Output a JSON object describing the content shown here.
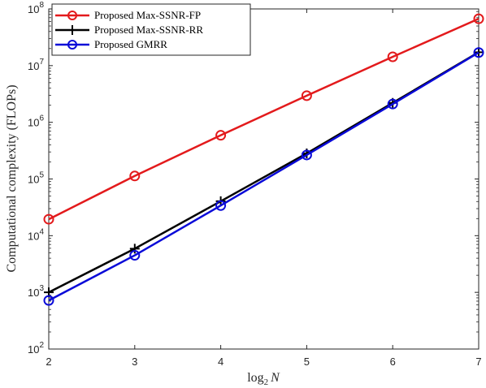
{
  "chart_data": {
    "type": "line",
    "xlabel": "log",
    "xlabel_sub": "2",
    "xlabel_var": "N",
    "ylabel": "Computational complexity (FLOPs)",
    "x": [
      2,
      3,
      4,
      5,
      6,
      7
    ],
    "xlim": [
      2,
      7
    ],
    "ylim": [
      100,
      100000000
    ],
    "yscale": "log",
    "x_ticks": [
      "2",
      "3",
      "4",
      "5",
      "6",
      "7"
    ],
    "y_ticks": [
      {
        "base": "10",
        "exp": "2"
      },
      {
        "base": "10",
        "exp": "3"
      },
      {
        "base": "10",
        "exp": "4"
      },
      {
        "base": "10",
        "exp": "5"
      },
      {
        "base": "10",
        "exp": "6"
      },
      {
        "base": "10",
        "exp": "7"
      },
      {
        "base": "10",
        "exp": "8"
      }
    ],
    "grid": false,
    "legend_position": "top-left",
    "series": [
      {
        "name": "Proposed Max-SSNR-FP",
        "color": "#e31a1c",
        "marker": "circle",
        "values": [
          19500,
          113000,
          590000,
          2950000,
          14300000,
          67000000
        ]
      },
      {
        "name": "Proposed Max-SSNR-RR",
        "color": "#000000",
        "marker": "plus",
        "values": [
          1000,
          5900,
          40500,
          283000,
          2200000,
          17200000
        ]
      },
      {
        "name": "Proposed GMRR",
        "color": "#0a0ad8",
        "marker": "circle",
        "values": [
          720,
          4500,
          34000,
          265000,
          2100000,
          17000000
        ]
      }
    ]
  }
}
